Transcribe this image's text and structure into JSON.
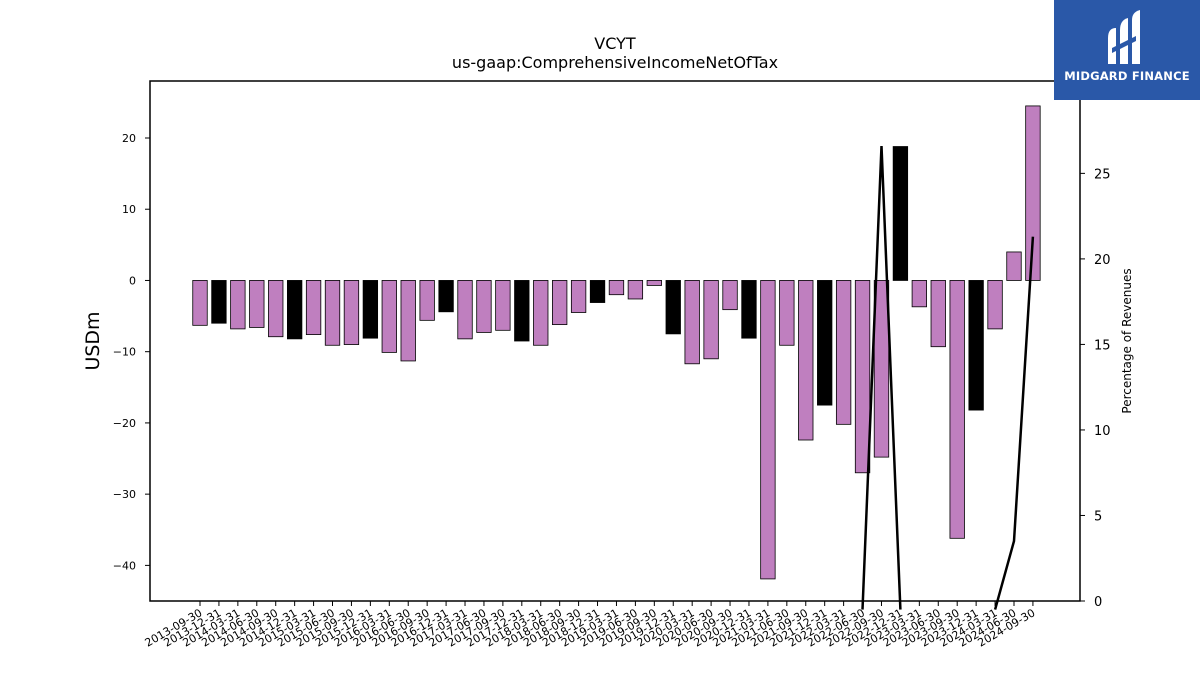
{
  "chart_data": {
    "type": "bar",
    "title": "VCYT",
    "subtitle": "us-gaap:ComprehensiveIncomeNetOfTax",
    "ylabel": "USDm",
    "y2label": "Percentage of Revenues",
    "ylim": [
      -45,
      28
    ],
    "y2lim": [
      0,
      30.4
    ],
    "yticks": [
      -40,
      -30,
      -20,
      -10,
      0,
      10,
      20
    ],
    "y2ticks": [
      0,
      5,
      10,
      15,
      20,
      25
    ],
    "categories": [
      "2013-09-30",
      "2013-12-31",
      "2014-03-31",
      "2014-06-30",
      "2014-09-30",
      "2014-12-31",
      "2015-03-31",
      "2015-06-30",
      "2015-09-30",
      "2015-12-31",
      "2016-03-31",
      "2016-06-30",
      "2016-09-30",
      "2016-12-31",
      "2017-03-31",
      "2017-06-30",
      "2017-09-30",
      "2017-12-31",
      "2018-03-31",
      "2018-06-30",
      "2018-09-30",
      "2018-12-31",
      "2019-03-31",
      "2019-06-30",
      "2019-09-30",
      "2019-12-31",
      "2020-03-31",
      "2020-06-30",
      "2020-09-30",
      "2020-12-31",
      "2021-03-31",
      "2021-06-30",
      "2021-09-30",
      "2021-12-31",
      "2022-03-31",
      "2022-06-30",
      "2022-09-30",
      "2022-12-31",
      "2023-03-31",
      "2023-06-30",
      "2023-09-30",
      "2023-12-31",
      "2024-03-31",
      "2024-06-30",
      "2024-09-30"
    ],
    "series": [
      {
        "values": [
          -6.3,
          -6.0,
          -6.8,
          -6.6,
          -7.9,
          -8.2,
          -7.6,
          -9.1,
          -9.0,
          -8.1,
          -10.1,
          -11.3,
          -5.6,
          -4.4,
          -8.2,
          -7.3,
          -7.0,
          -8.5,
          -9.1,
          -6.2,
          -4.5,
          -3.1,
          -2.0,
          -2.6,
          -0.7,
          -7.5,
          -11.7,
          -11.0,
          -4.1,
          -8.1,
          -41.9,
          -9.1,
          -22.4,
          -17.5,
          -20.2,
          -27.0,
          -24.8,
          18.8,
          -3.7,
          -9.3,
          -36.2,
          -18.2,
          -6.8,
          4.0,
          24.5
        ]
      }
    ],
    "bar_colors": [
      "#bf7fbf",
      "#000000",
      "#bf7fbf",
      "#bf7fbf",
      "#bf7fbf",
      "#000000",
      "#bf7fbf",
      "#bf7fbf",
      "#bf7fbf",
      "#000000",
      "#bf7fbf",
      "#bf7fbf",
      "#bf7fbf",
      "#000000",
      "#bf7fbf",
      "#bf7fbf",
      "#bf7fbf",
      "#000000",
      "#bf7fbf",
      "#bf7fbf",
      "#bf7fbf",
      "#000000",
      "#bf7fbf",
      "#bf7fbf",
      "#bf7fbf",
      "#000000",
      "#bf7fbf",
      "#bf7fbf",
      "#bf7fbf",
      "#000000",
      "#bf7fbf",
      "#bf7fbf",
      "#bf7fbf",
      "#000000",
      "#bf7fbf",
      "#bf7fbf",
      "#bf7fbf",
      "#000000",
      "#bf7fbf",
      "#bf7fbf",
      "#bf7fbf",
      "#000000",
      "#bf7fbf",
      "#bf7fbf",
      "#bf7fbf"
    ],
    "line": {
      "color": "#000000",
      "points": [
        {
          "x": "2022-06-30",
          "y": -0.5
        },
        {
          "x": "2022-09-30",
          "y": 26.6
        },
        {
          "x": "2022-12-31",
          "y": -0.5
        },
        {
          "x": "2024-03-31",
          "y": -0.5
        },
        {
          "x": "2024-06-30",
          "y": 3.5
        },
        {
          "x": "2024-09-30",
          "y": 21.3
        }
      ]
    },
    "grid": false
  },
  "logo": {
    "text": "MIDGARD FINANCE",
    "background": "#2a58a8"
  }
}
